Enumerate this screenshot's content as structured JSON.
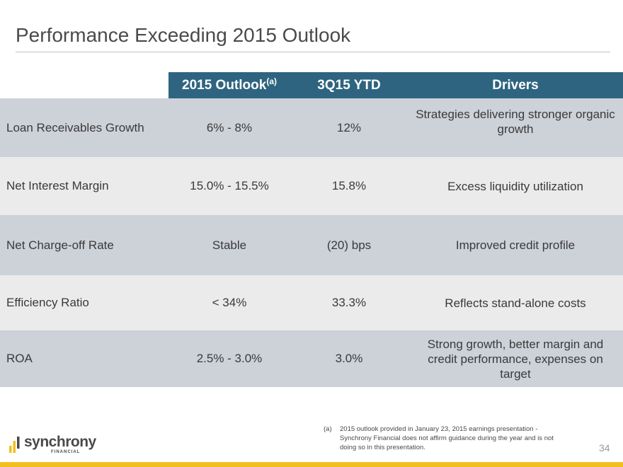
{
  "title": "Performance Exceeding 2015 Outlook",
  "table": {
    "headers": {
      "outlook": "2015 Outlook",
      "outlook_sup": "(a)",
      "ytd": "3Q15 YTD",
      "drivers": "Drivers"
    },
    "rows": [
      {
        "label": "Loan Receivables Growth",
        "outlook": "6% - 8%",
        "ytd": "12%",
        "drivers": "Strategies delivering stronger organic growth"
      },
      {
        "label": "Net Interest Margin",
        "outlook": "15.0% - 15.5%",
        "ytd": "15.8%",
        "drivers": "Excess liquidity utilization"
      },
      {
        "label": "Net Charge-off Rate",
        "outlook": "Stable",
        "ytd": "(20) bps",
        "drivers": "Improved credit profile"
      },
      {
        "label": "Efficiency Ratio",
        "outlook": "< 34%",
        "ytd": "33.3%",
        "drivers": "Reflects stand-alone costs"
      },
      {
        "label": "ROA",
        "outlook": "2.5% - 3.0%",
        "ytd": "3.0%",
        "drivers": "Strong growth, better margin and credit performance, expenses on target"
      }
    ]
  },
  "footnote": {
    "mark": "(a)",
    "text": "2015 outlook provided in January 23, 2015 earnings presentation - Synchrony Financial does not affirm guidance during the year and is not doing so in this presentation."
  },
  "page_number": "34",
  "logo": {
    "word": "synchrony",
    "sub": "FINANCIAL"
  },
  "colors": {
    "header_bg": "#2e6480",
    "row_dark": "#cdd1d8",
    "row_light": "#ebebeb",
    "accent_yellow": "#f2c01e"
  }
}
